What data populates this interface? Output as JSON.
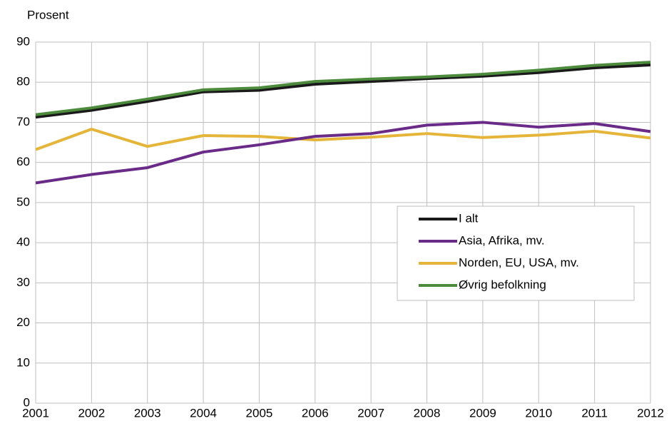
{
  "chart_data": {
    "type": "line",
    "y_label": "Prosent",
    "x": [
      2001,
      2002,
      2003,
      2004,
      2005,
      2006,
      2007,
      2008,
      2009,
      2010,
      2011,
      2012
    ],
    "xlim": [
      2001,
      2012
    ],
    "xticks": [
      2001,
      2002,
      2003,
      2004,
      2005,
      2006,
      2007,
      2008,
      2009,
      2010,
      2011,
      2012
    ],
    "ylim": [
      0,
      90
    ],
    "yticks": [
      0,
      10,
      20,
      30,
      40,
      50,
      60,
      70,
      80,
      90
    ],
    "grid": true,
    "legend": "lower right",
    "series": [
      {
        "name": "I alt",
        "color": "#1a1a1a",
        "values": [
          71.3,
          73.0,
          75.2,
          77.6,
          78.0,
          79.5,
          80.2,
          80.9,
          81.5,
          82.4,
          83.6,
          84.3
        ]
      },
      {
        "name": "Asia, Afrika, mv.",
        "color": "#6a2a87",
        "values": [
          54.9,
          57.0,
          58.7,
          62.6,
          64.4,
          66.5,
          67.2,
          69.3,
          70.0,
          68.8,
          69.7,
          67.7
        ]
      },
      {
        "name": "Norden, EU, USA, mv.",
        "color": "#e5b53a",
        "values": [
          63.2,
          68.3,
          64.0,
          66.7,
          66.5,
          65.6,
          66.3,
          67.2,
          66.2,
          66.8,
          67.8,
          66.1
        ]
      },
      {
        "name": "Øvrig befolkning",
        "color": "#4b8b3b",
        "values": [
          71.9,
          73.6,
          75.8,
          78.1,
          78.6,
          80.2,
          80.8,
          81.3,
          82.0,
          83.0,
          84.2,
          85.0
        ]
      }
    ]
  }
}
